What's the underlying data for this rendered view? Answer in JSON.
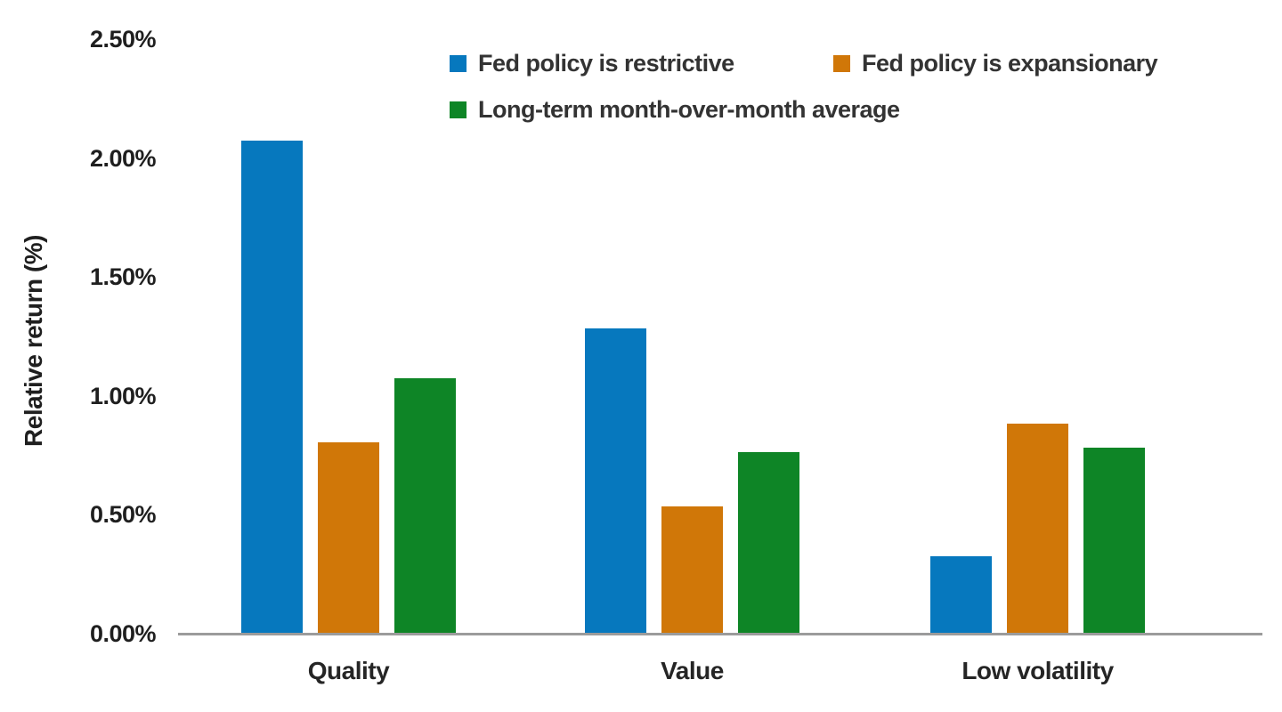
{
  "chart_data": {
    "type": "bar",
    "title": "",
    "xlabel": "",
    "ylabel": "Relative return (%)",
    "categories": [
      "Quality",
      "Value",
      "Low volatility"
    ],
    "series": [
      {
        "name": "Fed policy is restrictive",
        "color": "#0678be",
        "values": [
          2.07,
          1.28,
          0.32
        ]
      },
      {
        "name": "Fed policy is expansionary",
        "color": "#d07708",
        "values": [
          0.8,
          0.53,
          0.88
        ]
      },
      {
        "name": "Long-term month-over-month average",
        "color": "#0e8526",
        "values": [
          1.07,
          0.76,
          0.78
        ]
      }
    ],
    "ylim": [
      0,
      2.5
    ],
    "ytick_step": 0.5,
    "ytick_labels": [
      "0.00%",
      "0.50%",
      "1.00%",
      "1.50%",
      "2.00%",
      "2.50%"
    ],
    "grid": false,
    "legend_position": "top-center"
  },
  "colors": {
    "axis_line": "#9b9b9b",
    "text": "#1f1f1f"
  }
}
